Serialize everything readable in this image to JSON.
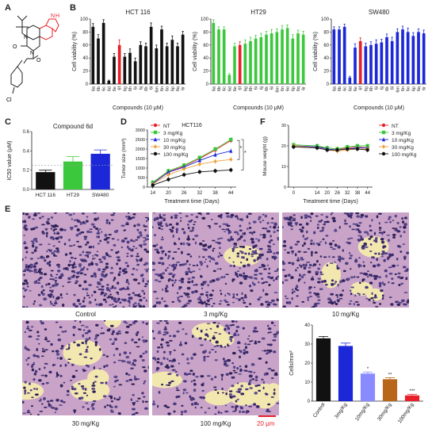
{
  "panels": {
    "A": "A",
    "B": "B",
    "C": "C",
    "D": "D",
    "E": "E",
    "F": "F"
  },
  "colors": {
    "black": "#111111",
    "red": "#e8202a",
    "green": "#3cc83c",
    "blue": "#1c28d8",
    "orange": "#f0a23a",
    "purple": "#8a8aff",
    "brown": "#b8661a"
  },
  "chart_data": [
    {
      "panel": "B1",
      "type": "bar",
      "title": "HCT 116",
      "xlabel": "Compounds (10 μM)",
      "ylabel": "Cell viability (%)",
      "ylim": [
        0,
        100
      ],
      "yticks": [
        0,
        20,
        40,
        60,
        80,
        100
      ],
      "color": "#111111",
      "highlight_color": "#e8202a",
      "highlight_index": 5,
      "categories": [
        "6a",
        "6b",
        "6c",
        "6d",
        "6e",
        "6f",
        "6g",
        "6h",
        "6i",
        "6j",
        "6k",
        "6l",
        "6m",
        "6n",
        "6o",
        "6p",
        "6q",
        "6r"
      ],
      "values": [
        88,
        70,
        94,
        5,
        42,
        60,
        42,
        48,
        35,
        60,
        58,
        88,
        55,
        84,
        58,
        68,
        58,
        76
      ],
      "errors": [
        5,
        6,
        5,
        1,
        5,
        8,
        5,
        6,
        5,
        5,
        5,
        6,
        5,
        5,
        5,
        6,
        5,
        5
      ]
    },
    {
      "panel": "B2",
      "type": "bar",
      "title": "HT29",
      "xlabel": "Compounds (10 μM)",
      "ylabel": "Cell viability (%)",
      "ylim": [
        0,
        100
      ],
      "yticks": [
        0,
        20,
        40,
        60,
        80,
        100
      ],
      "color": "#3cc83c",
      "highlight_color": "#e8202a",
      "highlight_index": 5,
      "categories": [
        "6a",
        "6b",
        "6c",
        "6d",
        "6e",
        "6f",
        "6g",
        "6h",
        "6i",
        "6j",
        "6k",
        "6l",
        "6m",
        "6n",
        "6o",
        "6p",
        "6q",
        "6r"
      ],
      "values": [
        94,
        84,
        84,
        14,
        58,
        60,
        62,
        66,
        70,
        72,
        76,
        78,
        80,
        84,
        86,
        70,
        78,
        76
      ],
      "errors": [
        5,
        4,
        4,
        2,
        5,
        5,
        6,
        6,
        5,
        6,
        5,
        6,
        5,
        6,
        5,
        6,
        5,
        5
      ]
    },
    {
      "panel": "B3",
      "type": "bar",
      "title": "SW480",
      "xlabel": "Compounds (10 μM)",
      "ylabel": "Cell viability (%)",
      "ylim": [
        0,
        100
      ],
      "yticks": [
        0,
        20,
        40,
        60,
        80,
        100
      ],
      "color": "#1c28d8",
      "highlight_color": "#e8202a",
      "highlight_index": 5,
      "categories": [
        "6a",
        "6b",
        "6c",
        "6d",
        "6e",
        "6f",
        "6g",
        "6h",
        "6i",
        "6j",
        "6k",
        "6l",
        "6m",
        "6n",
        "6o",
        "6p",
        "6q",
        "6r"
      ],
      "values": [
        84,
        84,
        88,
        10,
        56,
        66,
        58,
        60,
        62,
        64,
        72,
        66,
        80,
        84,
        80,
        74,
        80,
        78
      ],
      "errors": [
        4,
        4,
        4,
        2,
        6,
        5,
        5,
        5,
        6,
        5,
        5,
        6,
        5,
        5,
        6,
        5,
        5,
        5
      ]
    },
    {
      "panel": "C",
      "type": "bar",
      "title": "Compound 6d",
      "ylabel": "IC50 value (μM)",
      "ylim": [
        0,
        0.6
      ],
      "yticks": [
        "0.0",
        "0.2",
        "0.4",
        "0.6"
      ],
      "categories": [
        "HCT 116",
        "HT29",
        "SW480"
      ],
      "values": [
        0.18,
        0.29,
        0.37
      ],
      "errors": [
        0.02,
        0.05,
        0.04
      ],
      "colors": [
        "#111111",
        "#3cc83c",
        "#1c28d8"
      ]
    },
    {
      "panel": "D",
      "type": "line",
      "title": "HCT116",
      "xlabel": "Treatment time (Days)",
      "ylabel": "Tumor size (mm³)",
      "ylim": [
        0,
        3000
      ],
      "yticks": [
        0,
        500,
        1000,
        1500,
        2000,
        2500,
        3000
      ],
      "x": [
        14,
        20,
        26,
        32,
        38,
        44
      ],
      "series": [
        {
          "name": "NT",
          "color": "#e8202a",
          "marker": "circle",
          "values": [
            200,
            800,
            1100,
            1500,
            1950,
            2450
          ]
        },
        {
          "name": "3 mg/Kg",
          "color": "#3cc83c",
          "marker": "square",
          "values": [
            250,
            850,
            1150,
            1550,
            2000,
            2500
          ]
        },
        {
          "name": "10 mg/Kg",
          "color": "#1c28d8",
          "marker": "triangle",
          "values": [
            180,
            780,
            1050,
            1400,
            1700,
            1900
          ]
        },
        {
          "name": "30 mg/Kg",
          "color": "#f0a23a",
          "marker": "diamond",
          "values": [
            150,
            650,
            950,
            1200,
            1350,
            1450
          ]
        },
        {
          "name": "100 mg/Kg",
          "color": "#111111",
          "marker": "circle",
          "values": [
            100,
            400,
            650,
            800,
            850,
            900
          ]
        }
      ],
      "annotations": [
        "*",
        "*"
      ]
    },
    {
      "panel": "F",
      "type": "line",
      "xlabel": "Treatment time (Days)",
      "ylabel": "Mouse weight (g)",
      "ylim": [
        0,
        30
      ],
      "yticks": [
        0,
        10,
        20,
        30
      ],
      "x": [
        0,
        14,
        20,
        26,
        32,
        38,
        44
      ],
      "series": [
        {
          "name": "NT",
          "color": "#e8202a",
          "marker": "circle",
          "values": [
            20,
            19.5,
            19,
            18.5,
            19,
            19.5,
            19
          ]
        },
        {
          "name": "3 mg/Kg",
          "color": "#3cc83c",
          "marker": "square",
          "values": [
            20.5,
            20,
            19,
            18.5,
            19.5,
            20,
            20
          ]
        },
        {
          "name": "10 mg/Kg",
          "color": "#1c28d8",
          "marker": "triangle",
          "values": [
            20,
            19.5,
            18.5,
            18,
            18.5,
            19,
            19
          ]
        },
        {
          "name": "30 mg/Kg",
          "color": "#f0a23a",
          "marker": "diamond",
          "values": [
            20,
            19,
            18,
            17.5,
            18,
            18.5,
            18.5
          ]
        },
        {
          "name": "100 mg/Kg",
          "color": "#111111",
          "marker": "circle",
          "values": [
            19.5,
            19,
            18,
            18,
            18.5,
            18.5,
            18
          ]
        }
      ]
    },
    {
      "panel": "E-bar",
      "type": "bar",
      "ylabel": "Cells/mm²",
      "ylim": [
        0,
        40
      ],
      "yticks": [
        0,
        10,
        20,
        30,
        40
      ],
      "categories": [
        "Control",
        "3mg/Kg",
        "10mg/Kg",
        "30mg/Kg",
        "100mg/Kg"
      ],
      "values": [
        33,
        29,
        14.5,
        11.5,
        3
      ],
      "errors": [
        1,
        1.5,
        0.8,
        0.8,
        0.5
      ],
      "colors": [
        "#111111",
        "#1c28d8",
        "#8a8aff",
        "#b8661a",
        "#e8202a"
      ],
      "annotations": [
        "",
        "",
        "*",
        "**",
        "***"
      ]
    }
  ],
  "micrographs": {
    "captions": [
      "Control",
      "3 mg/Kg",
      "10 mg/Kg",
      "30 mg/Kg",
      "100 mg/Kg"
    ],
    "scale_bar": "20 μm"
  },
  "structure": {
    "labels": [
      "N",
      "N",
      "N",
      "H",
      "O",
      "O",
      "Cl"
    ]
  }
}
